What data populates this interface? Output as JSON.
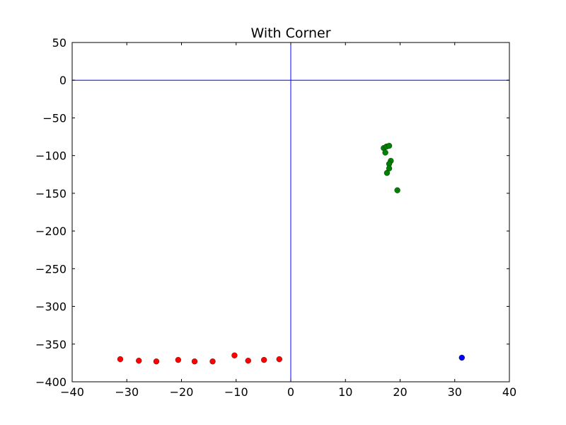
{
  "chart_data": {
    "type": "scatter",
    "title": "With Corner",
    "xlabel": "",
    "ylabel": "",
    "xlim": [
      -40,
      40
    ],
    "ylim": [
      -400,
      50
    ],
    "x_ticks": [
      -40,
      -30,
      -20,
      -10,
      0,
      10,
      20,
      30,
      40
    ],
    "y_ticks": [
      50,
      0,
      -50,
      -100,
      -150,
      -200,
      -250,
      -300,
      -350,
      -400
    ],
    "x_tick_labels": [
      "−40",
      "−30",
      "−20",
      "−10",
      "0",
      "10",
      "20",
      "30",
      "40"
    ],
    "y_tick_labels": [
      "50",
      "0",
      "−50",
      "−100",
      "−150",
      "−200",
      "−250",
      "−300",
      "−350",
      "−400"
    ],
    "grid": false,
    "reference_lines": {
      "x": 0,
      "y": 0,
      "color": "#0000ff"
    },
    "series": [
      {
        "color": "#ff0000",
        "points": [
          [
            -31.2,
            -370
          ],
          [
            -27.8,
            -372
          ],
          [
            -24.6,
            -373
          ],
          [
            -20.6,
            -371
          ],
          [
            -17.6,
            -373
          ],
          [
            -14.3,
            -373
          ],
          [
            -10.3,
            -365
          ],
          [
            -7.8,
            -372
          ],
          [
            -4.9,
            -371
          ],
          [
            -2.1,
            -370
          ]
        ]
      },
      {
        "color": "#008000",
        "points": [
          [
            17.0,
            -90
          ],
          [
            17.3,
            -96
          ],
          [
            17.5,
            -88
          ],
          [
            18.0,
            -87
          ],
          [
            18.3,
            -107
          ],
          [
            18.0,
            -111
          ],
          [
            18.0,
            -117
          ],
          [
            17.6,
            -123
          ],
          [
            19.5,
            -146
          ]
        ]
      },
      {
        "color": "#0000ff",
        "points": [
          [
            31.3,
            -368
          ]
        ]
      }
    ]
  }
}
